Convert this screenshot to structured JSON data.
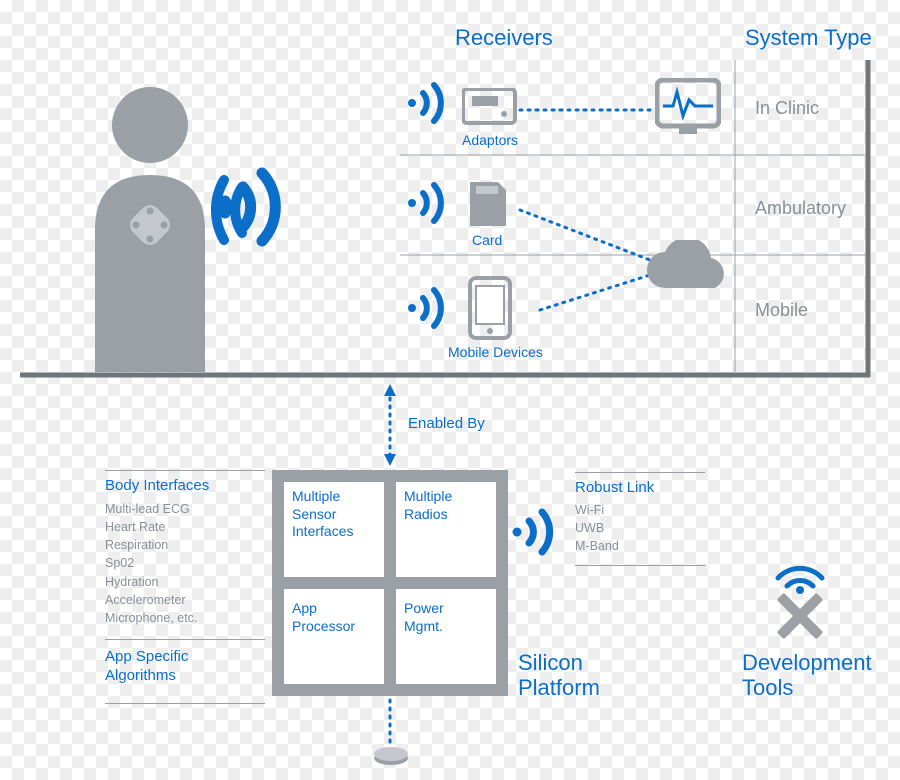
{
  "colors": {
    "blue": "#0b6ec9",
    "gray": "#9aa0a6",
    "darkgray": "#6f7579",
    "line": "#8a8f95",
    "light": "#f0f0f0"
  },
  "fonts": {
    "header": 22,
    "section": 20,
    "label": 15,
    "small": 13
  },
  "top": {
    "receivers_header": "Receivers",
    "systemtype_header": "System Type",
    "rows": [
      {
        "icon_label": "Adaptors",
        "type_label": "In Clinic"
      },
      {
        "icon_label": "Card",
        "type_label": "Ambulatory"
      },
      {
        "icon_label": "Mobile Devices",
        "type_label": "Mobile"
      }
    ],
    "enabled_by": "Enabled By"
  },
  "left_panel": {
    "body_interfaces_title": "Body Interfaces",
    "body_interfaces_items": [
      "Multi-lead ECG",
      "Heart Rate",
      "Respiration",
      "Sp02",
      "Hydration",
      "Accelerometer",
      "Microphone, etc."
    ],
    "app_algorithms_title": "App Specific\nAlgorithms"
  },
  "platform": {
    "q1": "Multiple\nSensor\nInterfaces",
    "q2": "Multiple\nRadios",
    "q3": "App\nProcessor",
    "q4": "Power\nMgmt.",
    "title": "Silicon\nPlatform"
  },
  "right_panel": {
    "robust_link_title": "Robust Link",
    "robust_link_items": [
      "Wi-Fi",
      "UWB",
      "M-Band"
    ]
  },
  "devtools_title": "Development\nTools"
}
